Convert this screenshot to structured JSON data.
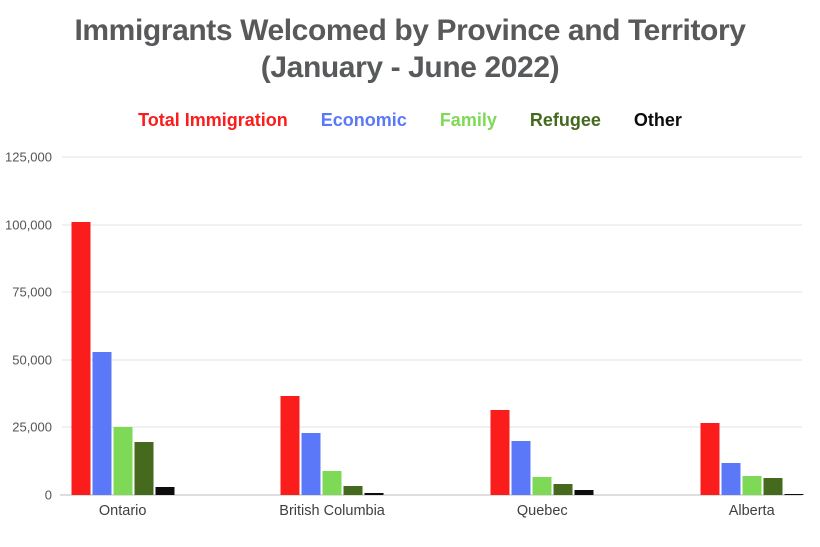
{
  "title": {
    "line1": "Immigrants Welcomed by Province and Territory",
    "line2": "(January - June 2022)"
  },
  "chart_data": {
    "type": "bar",
    "title": "Immigrants Welcomed by Province and Territory (January - June 2022)",
    "categories": [
      "Ontario",
      "British Columbia",
      "Quebec",
      "Alberta"
    ],
    "series": [
      {
        "name": "Total Immigration",
        "color": "#fb1c1c",
        "values": [
          101000,
          36500,
          31500,
          26500
        ]
      },
      {
        "name": "Economic",
        "color": "#5a78f8",
        "values": [
          53000,
          23000,
          20000,
          12000
        ]
      },
      {
        "name": "Family",
        "color": "#7ed957",
        "values": [
          25000,
          9000,
          6500,
          7000
        ]
      },
      {
        "name": "Refugee",
        "color": "#45691d",
        "values": [
          19500,
          3500,
          4000,
          6200
        ]
      },
      {
        "name": "Other",
        "color": "#0d0d0d",
        "values": [
          3000,
          700,
          2000,
          400
        ]
      }
    ],
    "xlabel": "",
    "ylabel": "",
    "ylim": [
      0,
      125000
    ],
    "yticks": [
      {
        "value": 0,
        "label": "0"
      },
      {
        "value": 25000,
        "label": "25,000"
      },
      {
        "value": 50000,
        "label": "50,000"
      },
      {
        "value": 75000,
        "label": "75,000"
      },
      {
        "value": 100000,
        "label": "100,000"
      },
      {
        "value": 125000,
        "label": "125,000"
      }
    ],
    "grid": true,
    "legend_position": "top",
    "group_centers_pct": [
      8.2,
      36.5,
      64.9,
      93.2
    ]
  },
  "colors": {
    "title_text": "#58595b",
    "axis_text": "#555555",
    "category_text": "#3f3f3f",
    "gridline": "#f1f1f1",
    "baseline": "#dedede",
    "background": "#ffffff"
  }
}
